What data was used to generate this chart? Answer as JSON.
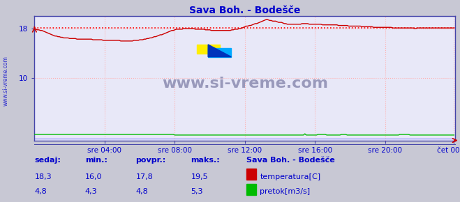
{
  "title": "Sava Boh. - Bodešče",
  "bg_color": "#c8c8d4",
  "plot_bg_color": "#e8e8f8",
  "grid_color": "#ffb0b0",
  "x_min": 0,
  "x_max": 288,
  "y_min": 0,
  "y_max": 20,
  "y_ticks": [
    10,
    18
  ],
  "x_tick_labels": [
    "sre 04:00",
    "sre 08:00",
    "sre 12:00",
    "sre 16:00",
    "sre 20:00",
    "čet 00:00"
  ],
  "x_tick_positions": [
    48,
    96,
    144,
    192,
    240,
    287
  ],
  "title_color": "#0000cc",
  "tick_color": "#0000cc",
  "axis_color": "#4444aa",
  "legend_title": "Sava Boh. - Bodešče",
  "legend_colors": [
    "#cc0000",
    "#00bb00"
  ],
  "stats_temp": [
    18.3,
    16.0,
    17.8,
    19.5
  ],
  "stats_pretok": [
    4.8,
    4.3,
    4.8,
    5.3
  ],
  "avg_line_value": 18.1,
  "avg_line_color": "#ff0000",
  "temp_color": "#cc0000",
  "pretok_color": "#00bb00",
  "visina_color": "#8888ff",
  "watermark": "www.si-vreme.com",
  "watermark_color": "#9999bb",
  "logo_yellow": "#ffee00",
  "logo_cyan": "#00aaff",
  "logo_blue": "#0033bb",
  "temp_data": [
    18.0,
    17.9,
    17.8,
    17.8,
    17.7,
    17.7,
    17.6,
    17.5,
    17.4,
    17.3,
    17.2,
    17.1,
    17.0,
    16.9,
    16.8,
    16.8,
    16.7,
    16.7,
    16.6,
    16.6,
    16.5,
    16.5,
    16.5,
    16.5,
    16.4,
    16.4,
    16.4,
    16.4,
    16.4,
    16.3,
    16.3,
    16.3,
    16.3,
    16.3,
    16.3,
    16.3,
    16.3,
    16.3,
    16.3,
    16.3,
    16.2,
    16.2,
    16.2,
    16.2,
    16.2,
    16.2,
    16.2,
    16.1,
    16.1,
    16.1,
    16.1,
    16.1,
    16.1,
    16.1,
    16.1,
    16.1,
    16.1,
    16.1,
    16.1,
    16.0,
    16.0,
    16.0,
    16.0,
    16.0,
    16.0,
    16.0,
    16.0,
    16.0,
    16.1,
    16.1,
    16.1,
    16.1,
    16.2,
    16.2,
    16.2,
    16.3,
    16.3,
    16.4,
    16.4,
    16.5,
    16.5,
    16.6,
    16.7,
    16.7,
    16.8,
    16.9,
    17.0,
    17.0,
    17.1,
    17.2,
    17.3,
    17.4,
    17.5,
    17.6,
    17.7,
    17.7,
    17.8,
    17.9,
    17.9,
    17.9,
    17.9,
    17.9,
    18.0,
    18.0,
    18.0,
    18.0,
    18.0,
    18.0,
    18.0,
    18.0,
    17.9,
    17.9,
    17.9,
    17.9,
    17.9,
    17.9,
    17.9,
    17.8,
    17.8,
    17.8,
    17.8,
    17.7,
    17.7,
    17.7,
    17.7,
    17.7,
    17.7,
    17.7,
    17.7,
    17.7,
    17.7,
    17.7,
    17.7,
    17.7,
    17.7,
    17.8,
    17.8,
    17.9,
    17.9,
    17.9,
    18.0,
    18.0,
    18.1,
    18.2,
    18.3,
    18.4,
    18.4,
    18.5,
    18.5,
    18.6,
    18.7,
    18.8,
    18.8,
    18.9,
    19.0,
    19.1,
    19.2,
    19.3,
    19.4,
    19.5,
    19.4,
    19.3,
    19.3,
    19.2,
    19.2,
    19.2,
    19.1,
    19.0,
    19.0,
    19.0,
    18.9,
    18.8,
    18.8,
    18.7,
    18.7,
    18.7,
    18.7,
    18.7,
    18.7,
    18.7,
    18.7,
    18.7,
    18.7,
    18.8,
    18.8,
    18.8,
    18.8,
    18.8,
    18.7,
    18.7,
    18.7,
    18.7,
    18.7,
    18.7,
    18.7,
    18.7,
    18.7,
    18.6,
    18.6,
    18.6,
    18.6,
    18.6,
    18.6,
    18.6,
    18.6,
    18.6,
    18.6,
    18.6,
    18.5,
    18.5,
    18.5,
    18.5,
    18.5,
    18.5,
    18.5,
    18.4,
    18.4,
    18.4,
    18.4,
    18.4,
    18.4,
    18.4,
    18.4,
    18.4,
    18.3,
    18.3,
    18.3,
    18.3,
    18.3,
    18.3,
    18.3,
    18.3,
    18.2,
    18.2,
    18.2,
    18.2,
    18.2,
    18.2,
    18.2,
    18.2,
    18.2,
    18.2,
    18.2,
    18.2,
    18.2,
    18.1,
    18.1,
    18.1,
    18.1,
    18.1,
    18.1,
    18.1,
    18.1,
    18.1,
    18.1,
    18.1,
    18.1,
    18.1,
    18.1,
    18.1,
    18.0,
    18.0,
    18.1,
    18.1,
    18.1,
    18.1,
    18.1,
    18.1,
    18.1,
    18.1,
    18.1,
    18.1,
    18.1,
    18.1,
    18.1,
    18.1,
    18.1,
    18.1,
    18.1,
    18.1,
    18.1,
    18.1,
    18.1,
    18.1,
    18.1,
    18.1,
    18.1,
    18.1
  ],
  "pretok_data": [
    4.8,
    4.8,
    4.8,
    4.8,
    4.8,
    4.8,
    4.8,
    4.8,
    4.8,
    4.8,
    4.8,
    4.8,
    4.8,
    4.8,
    4.8,
    4.8,
    4.8,
    4.8,
    4.8,
    4.8,
    4.8,
    4.8,
    4.8,
    4.8,
    4.8,
    4.8,
    4.8,
    4.8,
    4.8,
    4.8,
    4.8,
    4.8,
    4.8,
    4.8,
    4.8,
    4.8,
    4.8,
    4.8,
    4.8,
    4.8,
    4.8,
    4.8,
    4.8,
    4.8,
    4.8,
    4.8,
    4.8,
    4.8,
    4.8,
    4.8,
    4.8,
    4.8,
    4.8,
    4.8,
    4.8,
    4.8,
    4.8,
    4.8,
    4.8,
    4.8,
    4.8,
    4.8,
    4.8,
    4.8,
    4.8,
    4.8,
    4.8,
    4.8,
    4.8,
    4.8,
    4.8,
    4.8,
    4.8,
    4.8,
    4.8,
    4.8,
    4.8,
    4.8,
    4.8,
    4.8,
    4.8,
    4.8,
    4.8,
    4.8,
    4.8,
    4.8,
    4.8,
    4.8,
    4.8,
    4.8,
    4.8,
    4.8,
    4.8,
    4.8,
    4.8,
    4.8,
    4.3,
    4.3,
    4.3,
    4.3,
    4.3,
    4.3,
    4.3,
    4.3,
    4.3,
    4.3,
    4.3,
    4.3,
    4.3,
    4.3,
    4.3,
    4.3,
    4.3,
    4.3,
    4.3,
    4.3,
    4.3,
    4.3,
    4.3,
    4.3,
    4.3,
    4.3,
    4.3,
    4.3,
    4.3,
    4.3,
    4.3,
    4.3,
    4.3,
    4.3,
    4.3,
    4.3,
    4.3,
    4.3,
    4.3,
    4.3,
    4.3,
    4.3,
    4.3,
    4.3,
    4.3,
    4.3,
    4.3,
    4.3,
    4.3,
    4.3,
    4.3,
    4.3,
    4.3,
    4.3,
    4.3,
    4.3,
    4.3,
    4.3,
    4.3,
    4.3,
    4.3,
    4.3,
    4.3,
    4.3,
    4.3,
    4.3,
    4.3,
    4.3,
    4.3,
    4.3,
    4.3,
    4.3,
    4.3,
    4.3,
    4.3,
    4.3,
    4.3,
    4.3,
    4.3,
    4.3,
    4.3,
    4.3,
    4.3,
    4.3,
    4.3,
    4.3,
    4.3,
    4.3,
    4.3,
    5.3,
    4.3,
    4.3,
    4.3,
    4.3,
    4.3,
    4.3,
    4.3,
    4.3,
    4.8,
    4.8,
    4.8,
    4.8,
    4.8,
    4.8,
    4.3,
    4.3,
    4.3,
    4.3,
    4.3,
    4.3,
    4.3,
    4.3,
    4.3,
    4.3,
    4.8,
    4.8,
    4.8,
    4.8,
    4.3,
    4.3,
    4.3,
    4.3,
    4.3,
    4.3,
    4.3,
    4.3,
    4.3,
    4.3,
    4.3,
    4.3,
    4.3,
    4.3,
    4.3,
    4.3,
    4.3,
    4.3,
    4.3,
    4.3,
    4.3,
    4.3,
    4.3,
    4.3,
    4.3,
    4.3,
    4.3,
    4.3,
    4.3,
    4.3,
    4.3,
    4.3,
    4.3,
    4.3,
    4.3,
    4.3,
    4.8,
    4.8,
    4.8,
    4.8,
    4.8,
    4.8,
    4.8,
    4.3,
    4.3,
    4.3,
    4.3,
    4.3,
    4.3,
    4.3,
    4.3,
    4.3,
    4.3,
    4.3,
    4.3,
    4.3,
    4.3,
    4.3,
    4.3,
    4.3,
    4.3,
    4.3,
    4.3,
    4.3,
    4.3,
    4.3,
    4.3,
    4.3,
    4.3,
    4.3,
    4.3,
    4.3,
    4.3,
    4.3
  ]
}
